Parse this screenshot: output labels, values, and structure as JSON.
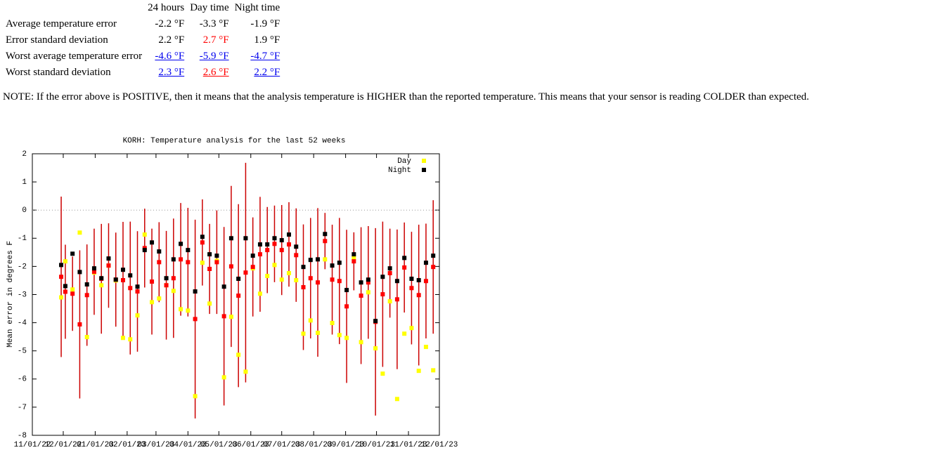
{
  "table": {
    "columns": [
      "24 hours",
      "Day time",
      "Night time"
    ],
    "rows": [
      [
        "Average temperature error",
        "-2.2 °F",
        "-3.3 °F",
        "-1.9 °F"
      ],
      [
        "Error standard deviation",
        "2.2 °F",
        "2.7 °F",
        "1.9 °F"
      ],
      [
        "Worst average temperature error",
        "-4.6 °F",
        "-5.9 °F",
        "-4.7 °F"
      ],
      [
        "Worst standard deviation",
        "2.3 °F",
        "2.6 °F",
        "2.2 °F"
      ]
    ]
  },
  "note": "NOTE: If the error above is POSITIVE, then it means that the analysis temperature is HIGHER than the reported temperature. This means that your sensor is reading COLDER than expected.",
  "chart_data": {
    "type": "scatter",
    "title": "KORH: Temperature analysis for the last 52 weeks",
    "y_label": "Mean error in degrees F",
    "x": [
      "2022-11-29",
      "2022-12-03",
      "2022-12-10",
      "2022-12-17",
      "2022-12-24",
      "2022-12-31",
      "2023-01-07",
      "2023-01-14",
      "2023-01-21",
      "2023-01-28",
      "2023-02-04",
      "2023-02-11",
      "2023-02-18",
      "2023-02-25",
      "2023-03-04",
      "2023-03-11",
      "2023-03-18",
      "2023-03-25",
      "2023-04-01",
      "2023-04-08",
      "2023-04-15",
      "2023-04-22",
      "2023-04-29",
      "2023-05-06",
      "2023-05-13",
      "2023-05-20",
      "2023-05-27",
      "2023-06-03",
      "2023-06-10",
      "2023-06-17",
      "2023-06-24",
      "2023-07-01",
      "2023-07-08",
      "2023-07-15",
      "2023-07-22",
      "2023-07-29",
      "2023-08-05",
      "2023-08-12",
      "2023-08-19",
      "2023-08-26",
      "2023-09-02",
      "2023-09-09",
      "2023-09-16",
      "2023-09-23",
      "2023-09-30",
      "2023-10-07",
      "2023-10-14",
      "2023-10-21",
      "2023-10-28",
      "2023-11-04",
      "2023-11-11",
      "2023-11-18",
      "2023-11-25"
    ],
    "series": [
      {
        "color": "#ff0000",
        "error_color": "#cc0000",
        "values": [
          -2.37,
          -2.9,
          -2.97,
          -4.06,
          -3.02,
          -2.19,
          -2.44,
          -1.97,
          -2.47,
          -2.49,
          -2.77,
          -2.89,
          -1.35,
          -2.54,
          -1.85,
          -2.67,
          -2.42,
          -1.75,
          -1.85,
          -3.87,
          -1.15,
          -2.09,
          -1.85,
          -3.77,
          -2.0,
          -3.04,
          -2.22,
          -2.02,
          -1.57,
          -1.42,
          -1.2,
          -1.42,
          -1.22,
          -1.6,
          -2.74,
          -2.42,
          -2.57,
          -1.1,
          -2.47,
          -2.52,
          -3.42,
          -1.82,
          -3.04,
          -2.57,
          -3.97,
          -2.99,
          -2.24,
          -3.17,
          -2.04,
          -2.77,
          -3.02,
          -2.52,
          -2.02
        ],
        "errors": [
          2.85,
          1.67,
          1.32,
          2.63,
          1.8,
          1.53,
          1.95,
          1.5,
          1.67,
          2.07,
          2.36,
          2.14,
          1.4,
          1.88,
          1.42,
          1.93,
          2.12,
          2.0,
          1.93,
          3.53,
          1.53,
          1.6,
          1.84,
          3.17,
          2.86,
          3.25,
          3.9,
          1.76,
          2.04,
          1.53,
          1.36,
          1.6,
          1.5,
          1.66,
          2.23,
          2.14,
          2.64,
          1.0,
          1.95,
          2.24,
          2.72,
          1.03,
          2.43,
          2.0,
          3.33,
          2.58,
          1.58,
          2.48,
          1.6,
          2.0,
          2.5,
          2.04,
          2.37
        ]
      },
      {
        "name": "Day",
        "color": "#ffff00",
        "values": [
          -3.1,
          -1.82,
          -2.82,
          -0.8,
          -4.51,
          -2.22,
          -2.67,
          -1.97,
          -2.5,
          -4.54,
          -4.59,
          -3.74,
          -0.87,
          -3.27,
          -3.14,
          -2.67,
          -2.87,
          -3.52,
          -3.57,
          -6.61,
          -1.87,
          -3.32,
          -1.8,
          -5.94,
          -3.79,
          -5.14,
          -5.74,
          -2.07,
          -2.97,
          -2.34,
          -1.95,
          -2.47,
          -2.24,
          -2.49,
          -4.39,
          -3.92,
          -4.36,
          -1.75,
          -4.01,
          -4.44,
          -4.54,
          -1.7,
          -4.69,
          -2.92,
          -4.91,
          -5.81,
          -3.24,
          -6.71,
          -4.39,
          -4.19,
          -5.71,
          -4.86,
          -5.69
        ]
      },
      {
        "name": "Night",
        "color": "#000000",
        "values": [
          -1.95,
          -2.7,
          -1.55,
          -2.2,
          -2.64,
          -2.07,
          -2.42,
          -1.72,
          -2.47,
          -2.12,
          -2.32,
          -2.72,
          -1.42,
          -1.15,
          -1.47,
          -2.42,
          -1.75,
          -1.2,
          -1.42,
          -2.89,
          -0.95,
          -1.57,
          -1.62,
          -2.72,
          -1.0,
          -2.44,
          -1.0,
          -1.62,
          -1.22,
          -1.22,
          -1.0,
          -1.07,
          -0.87,
          -1.3,
          -2.02,
          -1.77,
          -1.75,
          -0.85,
          -1.97,
          -1.87,
          -2.84,
          -1.57,
          -2.57,
          -2.47,
          -3.94,
          -2.37,
          -2.07,
          -2.52,
          -1.7,
          -2.44,
          -2.49,
          -1.87,
          -1.62
        ]
      }
    ],
    "xlim": [
      "2022-11-01",
      "2023-12-01"
    ],
    "xticks": [
      {
        "value": "2022-11-01",
        "label": "11/01/22"
      },
      {
        "value": "2022-12-01",
        "label": "12/01/22"
      },
      {
        "value": "2023-01-01",
        "label": "01/01/23"
      },
      {
        "value": "2023-02-01",
        "label": "02/01/23"
      },
      {
        "value": "2023-03-01",
        "label": "03/01/23"
      },
      {
        "value": "2023-04-01",
        "label": "04/01/23"
      },
      {
        "value": "2023-05-01",
        "label": "05/01/23"
      },
      {
        "value": "2023-06-01",
        "label": "06/01/23"
      },
      {
        "value": "2023-07-01",
        "label": "07/01/23"
      },
      {
        "value": "2023-08-01",
        "label": "08/01/23"
      },
      {
        "value": "2023-09-01",
        "label": "09/01/23"
      },
      {
        "value": "2023-10-01",
        "label": "10/01/23"
      },
      {
        "value": "2023-11-01",
        "label": "11/01/23"
      },
      {
        "value": "2023-12-01",
        "label": "12/01/23"
      }
    ],
    "ylim": [
      -8,
      2
    ],
    "yticks": [
      -8,
      -7,
      -6,
      -5,
      -4,
      -3,
      -2,
      -1,
      0,
      1,
      2
    ],
    "zero_line": true,
    "legend": "top-right"
  }
}
